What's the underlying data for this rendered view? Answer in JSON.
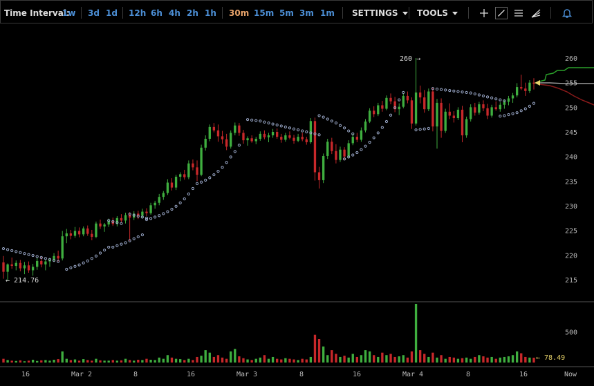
{
  "toolbar": {
    "label": "Time Interval:",
    "intervals": [
      "1w",
      "3d",
      "1d",
      "12h",
      "6h",
      "4h",
      "2h",
      "1h",
      "30m",
      "15m",
      "5m",
      "3m",
      "1m"
    ],
    "active_interval": "30m",
    "settings_label": "SETTINGS",
    "tools_label": "TOOLS",
    "icons": [
      "crosshair-icon",
      "line-draw-icon",
      "horizontal-lines-icon",
      "fan-lines-icon",
      "bell-icon"
    ]
  },
  "chart_data": [
    {
      "type": "candlestick",
      "ylim": [
        212,
        262
      ],
      "yticks": [
        215,
        220,
        225,
        230,
        235,
        240,
        245,
        250,
        255,
        260
      ],
      "xticks": [
        "16",
        "Mar 2",
        "8",
        "16",
        "Mar 3",
        "8",
        "16",
        "Mar 4",
        "8",
        "16",
        "Now"
      ],
      "annotations": {
        "high_label": "260 →",
        "low_label": "← 214.76",
        "last_price": "254.8"
      },
      "colors": {
        "up": "#3fae3f",
        "down": "#c8282a",
        "sar": "#9aa8c8",
        "ask": "#2aa02a",
        "bid": "#8a1a1a"
      },
      "ohlc": [
        [
          218.5,
          219.8,
          215.2,
          216.6
        ],
        [
          216.6,
          218.3,
          214.8,
          218.1
        ],
        [
          218.1,
          219.5,
          217.2,
          217.8
        ],
        [
          217.8,
          218.9,
          216.9,
          218.4
        ],
        [
          218.4,
          219.0,
          216.7,
          217.3
        ],
        [
          217.3,
          218.6,
          216.1,
          217.9
        ],
        [
          217.9,
          218.7,
          216.4,
          216.9
        ],
        [
          216.9,
          218.2,
          215.8,
          217.6
        ],
        [
          217.6,
          219.4,
          217.0,
          218.8
        ],
        [
          218.8,
          219.6,
          217.5,
          218.1
        ],
        [
          218.1,
          219.0,
          216.9,
          218.7
        ],
        [
          218.7,
          219.3,
          217.6,
          219.0
        ],
        [
          219.0,
          220.4,
          218.6,
          219.8
        ],
        [
          219.8,
          220.9,
          218.7,
          219.3
        ],
        [
          219.3,
          224.9,
          218.9,
          223.8
        ],
        [
          223.8,
          225.3,
          222.4,
          224.4
        ],
        [
          224.4,
          225.1,
          223.2,
          223.9
        ],
        [
          223.9,
          225.7,
          223.5,
          224.9
        ],
        [
          224.9,
          225.6,
          223.6,
          224.2
        ],
        [
          224.2,
          225.8,
          223.8,
          225.4
        ],
        [
          225.4,
          226.0,
          223.9,
          224.3
        ],
        [
          224.3,
          225.1,
          223.0,
          223.7
        ],
        [
          223.7,
          226.8,
          223.4,
          226.4
        ],
        [
          226.4,
          227.2,
          225.3,
          225.8
        ],
        [
          225.8,
          226.5,
          224.7,
          226.2
        ],
        [
          226.2,
          227.4,
          225.7,
          226.9
        ],
        [
          226.9,
          227.6,
          225.9,
          226.3
        ],
        [
          226.3,
          227.9,
          225.8,
          227.5
        ],
        [
          227.5,
          228.3,
          226.6,
          227.0
        ],
        [
          227.0,
          228.6,
          226.4,
          228.1
        ],
        [
          228.1,
          228.7,
          222.9,
          227.6
        ],
        [
          227.6,
          228.9,
          227.1,
          228.4
        ],
        [
          228.4,
          229.0,
          227.3,
          228.0
        ],
        [
          228.0,
          229.4,
          227.5,
          228.8
        ],
        [
          228.8,
          229.5,
          227.9,
          228.5
        ],
        [
          228.5,
          230.6,
          228.2,
          230.1
        ],
        [
          230.1,
          231.0,
          229.4,
          230.6
        ],
        [
          230.6,
          232.4,
          230.1,
          231.8
        ],
        [
          231.8,
          233.0,
          231.2,
          232.6
        ],
        [
          232.6,
          235.4,
          232.2,
          234.7
        ],
        [
          234.7,
          235.6,
          233.1,
          233.7
        ],
        [
          233.7,
          236.3,
          233.2,
          235.9
        ],
        [
          235.9,
          236.8,
          235.0,
          236.4
        ],
        [
          236.4,
          237.3,
          235.3,
          235.8
        ],
        [
          235.8,
          239.2,
          235.4,
          238.6
        ],
        [
          238.6,
          239.4,
          237.2,
          237.8
        ],
        [
          237.8,
          239.2,
          235.0,
          236.3
        ],
        [
          236.3,
          242.4,
          236.0,
          241.8
        ],
        [
          241.8,
          244.3,
          241.2,
          243.6
        ],
        [
          243.6,
          246.5,
          243.1,
          246.0
        ],
        [
          246.0,
          246.8,
          244.9,
          245.3
        ],
        [
          245.3,
          246.5,
          243.0,
          244.1
        ],
        [
          244.1,
          245.2,
          242.6,
          243.5
        ],
        [
          243.5,
          244.6,
          241.3,
          242.0
        ],
        [
          242.0,
          245.3,
          241.6,
          244.8
        ],
        [
          244.8,
          246.9,
          244.3,
          246.3
        ],
        [
          246.3,
          246.8,
          244.2,
          244.8
        ],
        [
          244.8,
          245.4,
          242.6,
          243.3
        ],
        [
          243.3,
          244.1,
          242.2,
          243.7
        ],
        [
          243.7,
          244.3,
          242.8,
          243.1
        ],
        [
          243.1,
          244.0,
          242.5,
          243.6
        ],
        [
          243.6,
          245.1,
          243.2,
          244.6
        ],
        [
          244.6,
          245.3,
          243.5,
          243.9
        ],
        [
          243.9,
          244.8,
          242.9,
          244.3
        ],
        [
          244.3,
          245.6,
          243.8,
          245.0
        ],
        [
          245.0,
          245.7,
          243.6,
          244.0
        ],
        [
          244.0,
          244.6,
          242.8,
          243.4
        ],
        [
          243.4,
          244.8,
          243.0,
          244.3
        ],
        [
          244.3,
          245.1,
          243.5,
          243.8
        ],
        [
          243.8,
          244.4,
          242.6,
          243.2
        ],
        [
          243.2,
          244.6,
          242.9,
          244.0
        ],
        [
          244.0,
          244.8,
          243.1,
          243.5
        ],
        [
          243.5,
          244.0,
          242.4,
          242.9
        ],
        [
          242.9,
          247.8,
          242.6,
          247.2
        ],
        [
          247.2,
          247.9,
          235.1,
          236.8
        ],
        [
          236.8,
          237.9,
          233.5,
          235.2
        ],
        [
          235.2,
          240.6,
          234.6,
          240.1
        ],
        [
          240.1,
          243.6,
          239.5,
          243.0
        ],
        [
          243.0,
          243.8,
          240.5,
          241.1
        ],
        [
          241.1,
          242.5,
          238.6,
          239.3
        ],
        [
          239.3,
          242.0,
          238.9,
          241.4
        ],
        [
          241.4,
          241.9,
          239.3,
          240.0
        ],
        [
          240.0,
          243.3,
          239.6,
          242.7
        ],
        [
          242.7,
          244.6,
          242.3,
          244.0
        ],
        [
          244.0,
          244.8,
          242.9,
          243.4
        ],
        [
          243.4,
          245.9,
          243.0,
          245.3
        ],
        [
          245.3,
          247.6,
          244.9,
          247.1
        ],
        [
          247.1,
          249.8,
          246.8,
          249.3
        ],
        [
          249.3,
          250.2,
          248.0,
          248.6
        ],
        [
          248.6,
          250.9,
          248.2,
          250.4
        ],
        [
          250.4,
          251.3,
          249.1,
          249.7
        ],
        [
          249.7,
          252.4,
          249.4,
          251.9
        ],
        [
          251.9,
          252.8,
          250.6,
          251.2
        ],
        [
          251.2,
          252.1,
          249.0,
          249.6
        ],
        [
          249.6,
          250.8,
          248.4,
          250.1
        ],
        [
          250.1,
          252.9,
          249.8,
          252.3
        ],
        [
          252.3,
          253.2,
          250.8,
          251.4
        ],
        [
          251.4,
          252.0,
          245.6,
          246.7
        ],
        [
          246.7,
          260.0,
          246.3,
          253.0
        ],
        [
          253.0,
          254.4,
          250.8,
          252.0
        ],
        [
          252.0,
          253.5,
          248.9,
          249.6
        ],
        [
          249.6,
          253.8,
          249.2,
          253.2
        ],
        [
          253.2,
          254.0,
          245.1,
          246.1
        ],
        [
          246.1,
          251.7,
          241.6,
          250.9
        ],
        [
          250.9,
          251.8,
          243.8,
          245.2
        ],
        [
          245.2,
          249.7,
          244.8,
          249.1
        ],
        [
          249.1,
          250.8,
          247.6,
          248.3
        ],
        [
          248.3,
          249.2,
          246.9,
          247.8
        ],
        [
          247.8,
          250.0,
          247.4,
          249.5
        ],
        [
          249.5,
          250.3,
          242.9,
          244.3
        ],
        [
          244.3,
          248.1,
          243.8,
          247.6
        ],
        [
          247.6,
          250.6,
          247.1,
          250.0
        ],
        [
          250.0,
          250.9,
          248.3,
          248.9
        ],
        [
          248.9,
          251.1,
          248.5,
          250.6
        ],
        [
          250.6,
          251.4,
          249.2,
          249.8
        ],
        [
          249.8,
          250.7,
          247.6,
          248.3
        ],
        [
          248.3,
          250.5,
          247.9,
          250.0
        ],
        [
          250.0,
          251.2,
          249.3,
          249.6
        ],
        [
          249.6,
          251.0,
          249.1,
          250.5
        ],
        [
          250.5,
          251.6,
          249.7,
          251.1
        ],
        [
          251.1,
          252.3,
          250.4,
          251.8
        ],
        [
          251.8,
          252.9,
          250.9,
          252.4
        ],
        [
          252.4,
          254.9,
          252.0,
          254.1
        ],
        [
          254.1,
          256.6,
          253.5,
          253.8
        ],
        [
          253.8,
          255.0,
          252.3,
          253.3
        ],
        [
          253.3,
          255.5,
          252.9,
          255.0
        ],
        [
          255.0,
          255.9,
          253.6,
          254.8
        ]
      ],
      "sar_upper": [
        221.3,
        221.1,
        220.9,
        220.7,
        220.5,
        220.3,
        220.1,
        219.9,
        219.7,
        219.5,
        219.3,
        219.1,
        218.9,
        218.7
      ],
      "sar_lower_1": [
        217.1,
        217.4,
        217.7,
        218.0,
        218.4,
        218.8,
        219.3,
        219.8,
        220.4,
        221.0,
        221.6
      ],
      "sar_upper_2": [
        227.0,
        226.8,
        226.6,
        226.4
      ],
      "sar_lower_2": [
        221.6,
        221.9,
        222.2,
        222.5,
        222.9,
        223.3,
        223.7,
        224.1
      ],
      "sar_upper_3": [
        228.3,
        228.1,
        227.9,
        227.7,
        227.5
      ],
      "sar_lower_3": [
        227.2,
        227.4,
        227.7,
        228.0,
        228.4,
        228.8,
        229.3,
        229.9,
        230.6,
        231.4,
        232.4,
        233.5,
        234.5,
        234.8,
        235.2,
        235.7,
        236.3,
        237.0,
        237.8,
        238.8,
        239.9,
        241.0,
        242.3
      ],
      "sar_upper_4": [
        247.5,
        247.4,
        247.3,
        247.2,
        247.0,
        246.8,
        246.6,
        246.4,
        246.2,
        246.0,
        245.8,
        245.6,
        245.4,
        245.2,
        245.0,
        244.8,
        244.6,
        244.4
      ],
      "sar_upper_5": [
        248.3,
        248.0,
        247.6,
        247.2,
        246.8,
        246.3,
        245.8,
        245.2,
        244.6
      ],
      "sar_lower_5": [
        239.5,
        239.9,
        240.3,
        240.8,
        241.4,
        242.1,
        242.9,
        243.8,
        244.8,
        245.9,
        247.1,
        248.4,
        249.9,
        251.5,
        253.0
      ],
      "sar_lower_6": [
        245.4,
        245.5,
        245.6,
        245.7
      ],
      "sar_upper_6": [
        253.8,
        253.7,
        253.6,
        253.5,
        253.4,
        253.3,
        253.2,
        253.1,
        253.0,
        252.9,
        252.7,
        252.5,
        252.3,
        252.1,
        251.9,
        251.7,
        251.5,
        251.3
      ],
      "sar_lower_7": [
        248.2,
        248.3,
        248.5,
        248.7,
        248.9,
        249.3,
        249.7,
        250.2,
        250.8
      ]
    },
    {
      "type": "bar",
      "label": "volume",
      "yticks": [
        500
      ],
      "ylim": [
        0,
        1000
      ],
      "last_volume": "← 78.49",
      "values": [
        60,
        40,
        30,
        25,
        35,
        20,
        30,
        45,
        25,
        35,
        40,
        30,
        45,
        55,
        180,
        60,
        40,
        50,
        30,
        55,
        40,
        30,
        60,
        35,
        30,
        30,
        40,
        30,
        35,
        60,
        40,
        30,
        45,
        40,
        60,
        45,
        40,
        80,
        60,
        120,
        80,
        60,
        55,
        40,
        60,
        40,
        90,
        110,
        200,
        160,
        90,
        120,
        80,
        60,
        180,
        220,
        100,
        70,
        50,
        40,
        60,
        80,
        120,
        60,
        90,
        60,
        50,
        70,
        60,
        50,
        40,
        60,
        50,
        90,
        450,
        380,
        260,
        120,
        200,
        140,
        90,
        110,
        80,
        140,
        90,
        120,
        200,
        180,
        120,
        90,
        160,
        120,
        140,
        90,
        100,
        120,
        80,
        180,
        950,
        200,
        140,
        90,
        160,
        80,
        120,
        60,
        90,
        80,
        60,
        70,
        80,
        60,
        90,
        120,
        100,
        80,
        90,
        60,
        80,
        90,
        100,
        120,
        180,
        150,
        90,
        80,
        78
      ]
    }
  ]
}
